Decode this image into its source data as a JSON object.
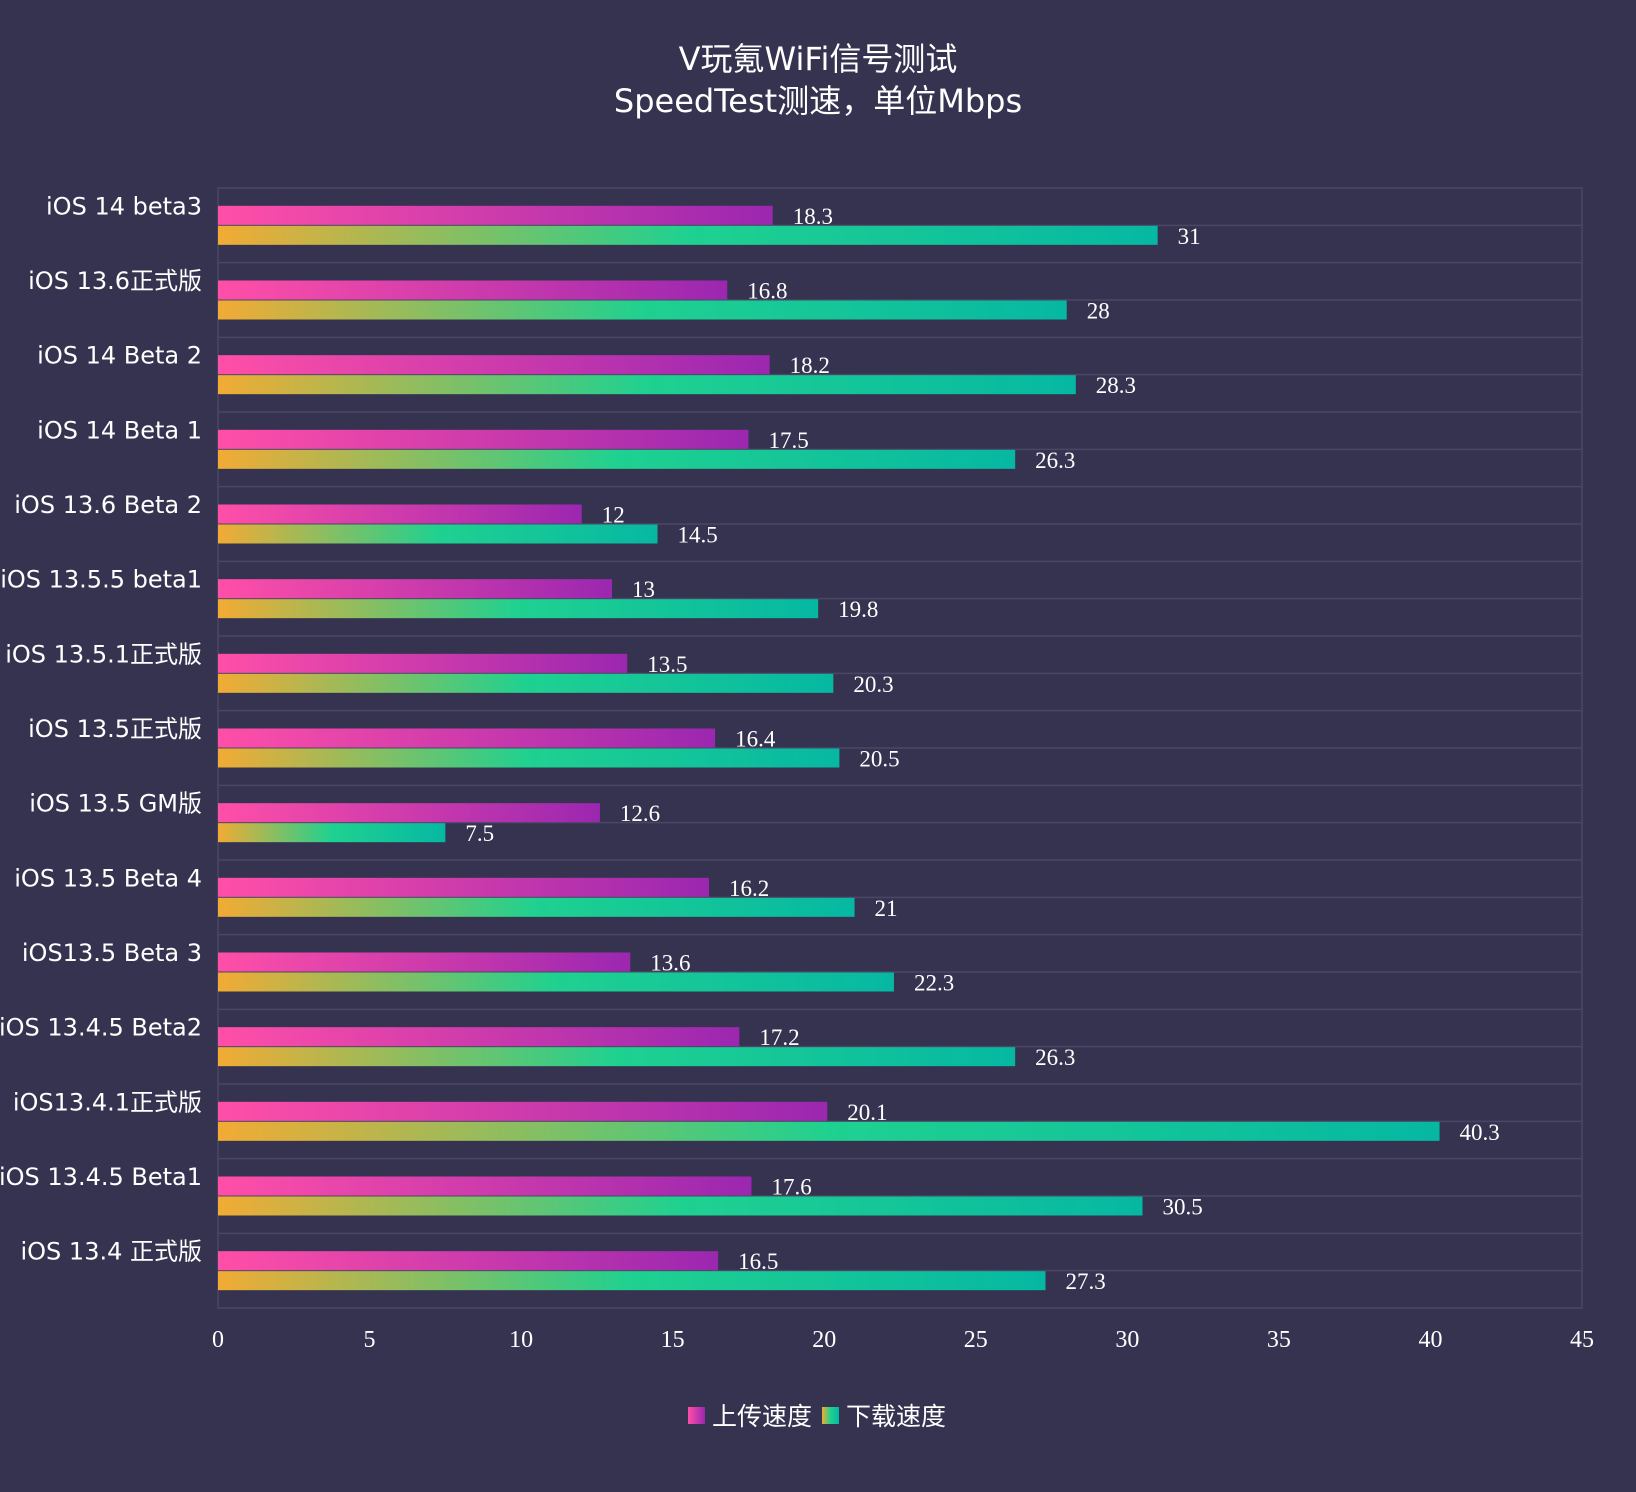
{
  "colors": {
    "background": "#363350",
    "upload_start": "#ff4fa8",
    "upload_end": "#9b27b0",
    "download_start": "#f2ab34",
    "download_mid": "#1fd190",
    "download_end": "#06b8a2",
    "grid": "#4a4766",
    "text": "#ffffff"
  },
  "chart_data": {
    "type": "bar",
    "orientation": "horizontal",
    "title": "V玩氪WiFi信号测试",
    "subtitle": "SpeedTest测速，单位Mbps",
    "categories": [
      "iOS 14 beta3",
      "iOS 13.6正式版",
      "iOS 14 Beta 2",
      "iOS 14 Beta 1",
      "iOS 13.6 Beta 2",
      "iOS 13.5.5 beta1",
      "iOS 13.5.1正式版",
      "iOS 13.5正式版",
      "iOS 13.5 GM版",
      "iOS 13.5 Beta 4",
      "iOS13.5 Beta 3",
      "iOS 13.4.5 Beta2",
      "iOS13.4.1正式版",
      "iOS 13.4.5 Beta1",
      "iOS 13.4 正式版"
    ],
    "series": [
      {
        "name": "上传速度",
        "values": [
          18.3,
          16.8,
          18.2,
          17.5,
          12,
          13,
          13.5,
          16.4,
          12.6,
          16.2,
          13.6,
          17.2,
          20.1,
          17.6,
          16.5
        ],
        "labels": [
          "18.3",
          "16.8",
          "18.2",
          "17.5",
          "12",
          "13",
          "13.5",
          "16.4",
          "12.6",
          "16.2",
          "13.6",
          "17.2",
          "20.1",
          "17.6",
          "16.5"
        ]
      },
      {
        "name": "下载速度",
        "values": [
          31,
          28,
          28.3,
          26.3,
          14.5,
          19.8,
          20.3,
          20.5,
          7.5,
          21,
          22.3,
          26.3,
          40.3,
          30.5,
          27.3
        ],
        "labels": [
          "31",
          "28",
          "28.3",
          "26.3",
          "14.5",
          "19.8",
          "20.3",
          "20.5",
          "7.5",
          "21",
          "22.3",
          "26.3",
          "40.3",
          "30.5",
          "27.3"
        ]
      }
    ],
    "xlim": [
      0,
      45
    ],
    "xticks": [
      "0",
      "5",
      "10",
      "15",
      "20",
      "25",
      "30",
      "35",
      "40",
      "45"
    ],
    "xlabel": "",
    "ylabel": "",
    "grid": true,
    "legend_position": "bottom-center"
  }
}
